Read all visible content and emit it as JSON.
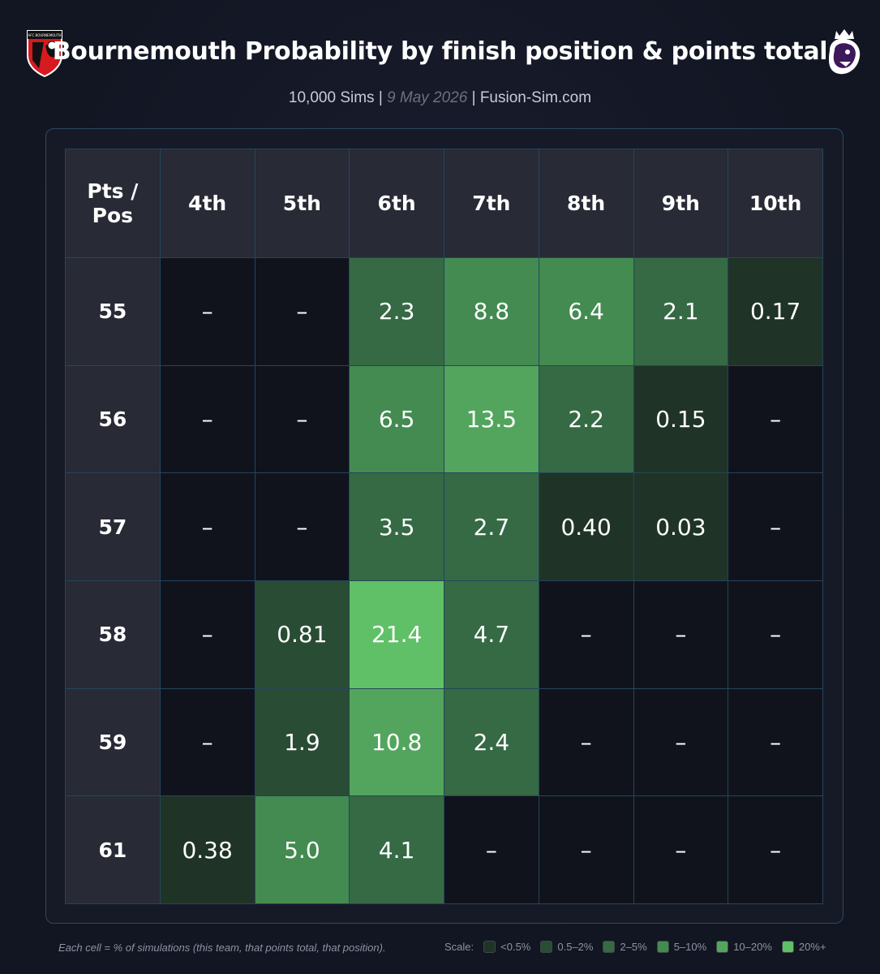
{
  "header": {
    "title": "Bournemouth Probability by finish position & points total",
    "subtitle_sims": "10,000 Sims | ",
    "subtitle_date": "9 May 2026",
    "subtitle_site": " | Fusion-Sim.com"
  },
  "logos": {
    "club_icon": "bournemouth-crest-icon",
    "club_text": "AFC BOURNEMOUTH",
    "league_icon": "premier-league-lion-icon"
  },
  "chart_data": {
    "type": "heatmap",
    "corner_label": "Pts / Pos",
    "columns": [
      "4th",
      "5th",
      "6th",
      "7th",
      "8th",
      "9th",
      "10th"
    ],
    "rows": [
      {
        "label": "55",
        "cells": [
          "–",
          "–",
          "2.3",
          "8.8",
          "6.4",
          "2.1",
          "0.17"
        ]
      },
      {
        "label": "56",
        "cells": [
          "–",
          "–",
          "6.5",
          "13.5",
          "2.2",
          "0.15",
          "–"
        ]
      },
      {
        "label": "57",
        "cells": [
          "–",
          "–",
          "3.5",
          "2.7",
          "0.40",
          "0.03",
          "–"
        ]
      },
      {
        "label": "58",
        "cells": [
          "–",
          "0.81",
          "21.4",
          "4.7",
          "–",
          "–",
          "–"
        ]
      },
      {
        "label": "59",
        "cells": [
          "–",
          "1.9",
          "10.8",
          "2.4",
          "–",
          "–",
          "–"
        ]
      },
      {
        "label": "61",
        "cells": [
          "0.38",
          "5.0",
          "4.1",
          "–",
          "–",
          "–",
          "–"
        ]
      }
    ],
    "empty_color": "#11131c",
    "scale": [
      {
        "label": "<0.5%",
        "min": 0,
        "max": 0.5,
        "color": "#1f3326"
      },
      {
        "label": "0.5–2%",
        "min": 0.5,
        "max": 2,
        "color": "#294c34"
      },
      {
        "label": "2–5%",
        "min": 2,
        "max": 5,
        "color": "#356a44"
      },
      {
        "label": "5–10%",
        "min": 5,
        "max": 10,
        "color": "#438b51"
      },
      {
        "label": "10–20%",
        "min": 10,
        "max": 20,
        "color": "#53a55e"
      },
      {
        "label": "20%+",
        "min": 20,
        "max": 100,
        "color": "#60c068"
      }
    ]
  },
  "footer": {
    "note": "Each cell = % of simulations (this team, that points total, that position).",
    "scale_label": "Scale:"
  }
}
